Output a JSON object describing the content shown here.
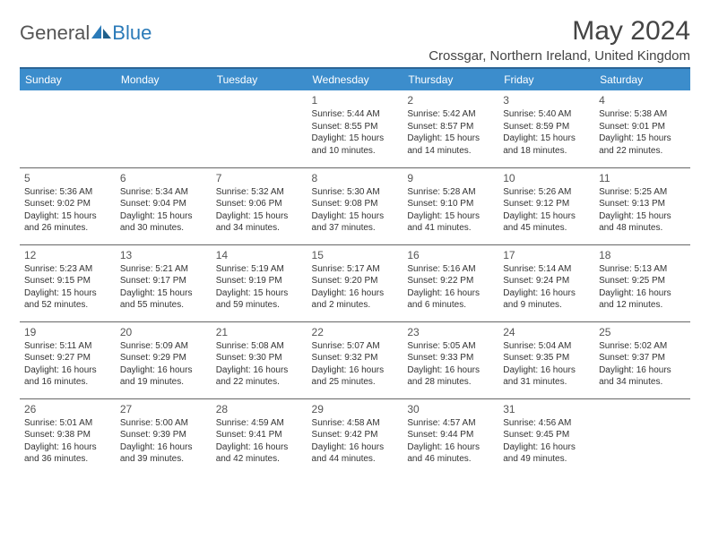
{
  "brand": {
    "part1": "General",
    "part2": "Blue"
  },
  "title": "May 2024",
  "location": "Crossgar, Northern Ireland, United Kingdom",
  "style": {
    "header_bg": "#3c8dcc",
    "header_fg": "#ffffff",
    "rule_color": "#2a6496",
    "row_border": "#666666",
    "text_color": "#333333",
    "logo_blue": "#2a7ab8",
    "month_fontsize": 30,
    "location_fontsize": 15,
    "day_header_fontsize": 12,
    "cell_fontsize": 10
  },
  "weekdays": [
    "Sunday",
    "Monday",
    "Tuesday",
    "Wednesday",
    "Thursday",
    "Friday",
    "Saturday"
  ],
  "weeks": [
    [
      null,
      null,
      null,
      {
        "n": "1",
        "sr": "5:44 AM",
        "ss": "8:55 PM",
        "dl": "15 hours and 10 minutes."
      },
      {
        "n": "2",
        "sr": "5:42 AM",
        "ss": "8:57 PM",
        "dl": "15 hours and 14 minutes."
      },
      {
        "n": "3",
        "sr": "5:40 AM",
        "ss": "8:59 PM",
        "dl": "15 hours and 18 minutes."
      },
      {
        "n": "4",
        "sr": "5:38 AM",
        "ss": "9:01 PM",
        "dl": "15 hours and 22 minutes."
      }
    ],
    [
      {
        "n": "5",
        "sr": "5:36 AM",
        "ss": "9:02 PM",
        "dl": "15 hours and 26 minutes."
      },
      {
        "n": "6",
        "sr": "5:34 AM",
        "ss": "9:04 PM",
        "dl": "15 hours and 30 minutes."
      },
      {
        "n": "7",
        "sr": "5:32 AM",
        "ss": "9:06 PM",
        "dl": "15 hours and 34 minutes."
      },
      {
        "n": "8",
        "sr": "5:30 AM",
        "ss": "9:08 PM",
        "dl": "15 hours and 37 minutes."
      },
      {
        "n": "9",
        "sr": "5:28 AM",
        "ss": "9:10 PM",
        "dl": "15 hours and 41 minutes."
      },
      {
        "n": "10",
        "sr": "5:26 AM",
        "ss": "9:12 PM",
        "dl": "15 hours and 45 minutes."
      },
      {
        "n": "11",
        "sr": "5:25 AM",
        "ss": "9:13 PM",
        "dl": "15 hours and 48 minutes."
      }
    ],
    [
      {
        "n": "12",
        "sr": "5:23 AM",
        "ss": "9:15 PM",
        "dl": "15 hours and 52 minutes."
      },
      {
        "n": "13",
        "sr": "5:21 AM",
        "ss": "9:17 PM",
        "dl": "15 hours and 55 minutes."
      },
      {
        "n": "14",
        "sr": "5:19 AM",
        "ss": "9:19 PM",
        "dl": "15 hours and 59 minutes."
      },
      {
        "n": "15",
        "sr": "5:17 AM",
        "ss": "9:20 PM",
        "dl": "16 hours and 2 minutes."
      },
      {
        "n": "16",
        "sr": "5:16 AM",
        "ss": "9:22 PM",
        "dl": "16 hours and 6 minutes."
      },
      {
        "n": "17",
        "sr": "5:14 AM",
        "ss": "9:24 PM",
        "dl": "16 hours and 9 minutes."
      },
      {
        "n": "18",
        "sr": "5:13 AM",
        "ss": "9:25 PM",
        "dl": "16 hours and 12 minutes."
      }
    ],
    [
      {
        "n": "19",
        "sr": "5:11 AM",
        "ss": "9:27 PM",
        "dl": "16 hours and 16 minutes."
      },
      {
        "n": "20",
        "sr": "5:09 AM",
        "ss": "9:29 PM",
        "dl": "16 hours and 19 minutes."
      },
      {
        "n": "21",
        "sr": "5:08 AM",
        "ss": "9:30 PM",
        "dl": "16 hours and 22 minutes."
      },
      {
        "n": "22",
        "sr": "5:07 AM",
        "ss": "9:32 PM",
        "dl": "16 hours and 25 minutes."
      },
      {
        "n": "23",
        "sr": "5:05 AM",
        "ss": "9:33 PM",
        "dl": "16 hours and 28 minutes."
      },
      {
        "n": "24",
        "sr": "5:04 AM",
        "ss": "9:35 PM",
        "dl": "16 hours and 31 minutes."
      },
      {
        "n": "25",
        "sr": "5:02 AM",
        "ss": "9:37 PM",
        "dl": "16 hours and 34 minutes."
      }
    ],
    [
      {
        "n": "26",
        "sr": "5:01 AM",
        "ss": "9:38 PM",
        "dl": "16 hours and 36 minutes."
      },
      {
        "n": "27",
        "sr": "5:00 AM",
        "ss": "9:39 PM",
        "dl": "16 hours and 39 minutes."
      },
      {
        "n": "28",
        "sr": "4:59 AM",
        "ss": "9:41 PM",
        "dl": "16 hours and 42 minutes."
      },
      {
        "n": "29",
        "sr": "4:58 AM",
        "ss": "9:42 PM",
        "dl": "16 hours and 44 minutes."
      },
      {
        "n": "30",
        "sr": "4:57 AM",
        "ss": "9:44 PM",
        "dl": "16 hours and 46 minutes."
      },
      {
        "n": "31",
        "sr": "4:56 AM",
        "ss": "9:45 PM",
        "dl": "16 hours and 49 minutes."
      },
      null
    ]
  ],
  "labels": {
    "sunrise": "Sunrise: ",
    "sunset": "Sunset: ",
    "daylight": "Daylight: "
  }
}
